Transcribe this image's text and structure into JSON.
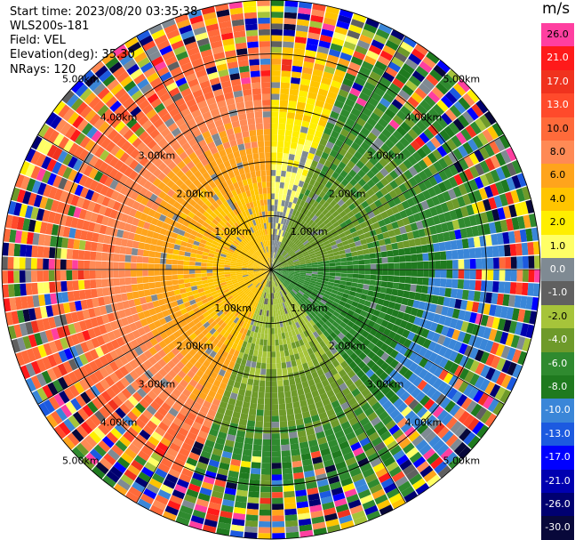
{
  "header": {
    "start_time": "Start time: 2023/08/20 03:35:38",
    "instrument": "WLS200s-181",
    "field": "Field: VEL",
    "elevation": "Elevation(deg): 35.30",
    "nrays": "NRays: 120"
  },
  "colorbar": {
    "unit": "m/s",
    "bins": [
      {
        "label": "26.0",
        "color": "#ff3fa0"
      },
      {
        "label": "21.0",
        "color": "#ff1a1a"
      },
      {
        "label": "17.0",
        "color": "#f0321e"
      },
      {
        "label": "13.0",
        "color": "#ff4a2b"
      },
      {
        "label": "10.0",
        "color": "#ff6a3a"
      },
      {
        "label": "8.0",
        "color": "#ff8a55"
      },
      {
        "label": "6.0",
        "color": "#ffa41c"
      },
      {
        "label": "4.0",
        "color": "#ffc400"
      },
      {
        "label": "2.0",
        "color": "#ffee00"
      },
      {
        "label": "1.0",
        "color": "#ffff66"
      },
      {
        "label": "0.0",
        "color": "#7f8a93"
      },
      {
        "label": "-1.0",
        "color": "#606060"
      },
      {
        "label": "-2.0",
        "color": "#a6c43a"
      },
      {
        "label": "-4.0",
        "color": "#6e9a2a"
      },
      {
        "label": "-6.0",
        "color": "#2f8a2f"
      },
      {
        "label": "-8.0",
        "color": "#1f7a1f"
      },
      {
        "label": "-10.0",
        "color": "#3a86d8"
      },
      {
        "label": "-13.0",
        "color": "#1c5ae0"
      },
      {
        "label": "-17.0",
        "color": "#0000ff"
      },
      {
        "label": "-21.0",
        "color": "#0000b0"
      },
      {
        "label": "-26.0",
        "color": "#000070"
      },
      {
        "label": "-30.0",
        "color": "#08083a"
      }
    ]
  },
  "range_rings": [
    "1.00km",
    "2.00km",
    "3.00km",
    "4.00km",
    "5.00km"
  ],
  "chart_data": {
    "type": "heatmap",
    "projection": "polar-ppi",
    "field": "VEL",
    "unit": "m/s",
    "nrays": 120,
    "range_rings_km": [
      1,
      2,
      3,
      4,
      5
    ],
    "azimuth_sectors": [
      {
        "from_deg": 200,
        "to_deg": 360,
        "dominant_velocity_ms": 4.0,
        "far_range_velocity_ms": 10.0
      },
      {
        "from_deg": 0,
        "to_deg": 20,
        "dominant_velocity_ms": 0.0,
        "far_range_velocity_ms": 4.0
      },
      {
        "from_deg": 20,
        "to_deg": 80,
        "dominant_velocity_ms": -4.0,
        "far_range_velocity_ms": -6.0
      },
      {
        "from_deg": 80,
        "to_deg": 140,
        "dominant_velocity_ms": -6.0,
        "far_range_velocity_ms": -10.0
      },
      {
        "from_deg": 140,
        "to_deg": 200,
        "dominant_velocity_ms": -2.0,
        "far_range_velocity_ms": -6.0
      }
    ],
    "noise_onset_km": 3.5
  }
}
